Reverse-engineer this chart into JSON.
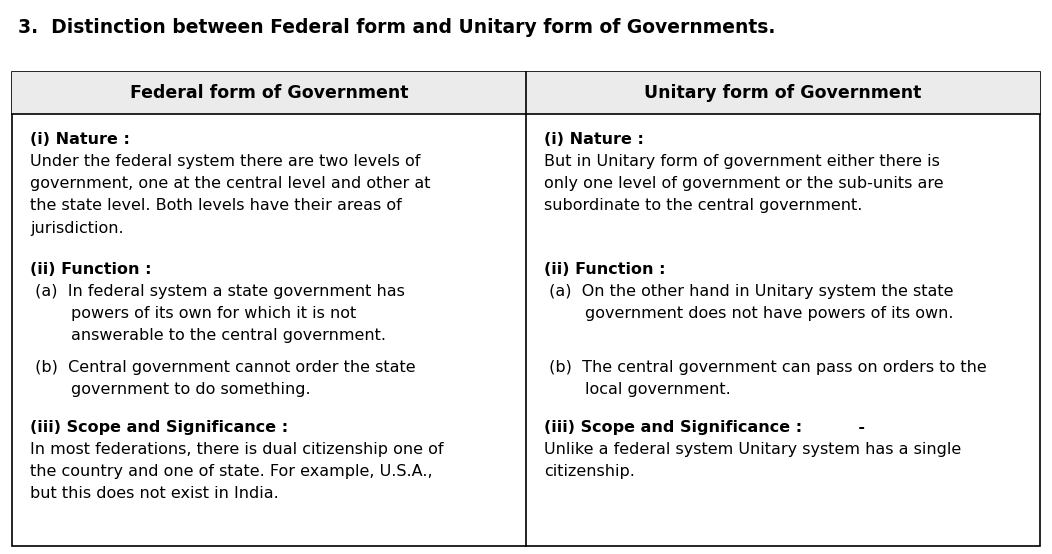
{
  "title": "3.  Distinction between Federal form and Unitary form of Governments.",
  "col1_header": "Federal form of Government",
  "col2_header": "Unitary form of Government",
  "background_color": "#ffffff",
  "text_color": "#000000",
  "border_color": "#000000",
  "title_fontsize": 13.5,
  "header_fontsize": 12.5,
  "body_fontsize": 11.5,
  "fig_width": 10.52,
  "fig_height": 5.54,
  "dpi": 100
}
